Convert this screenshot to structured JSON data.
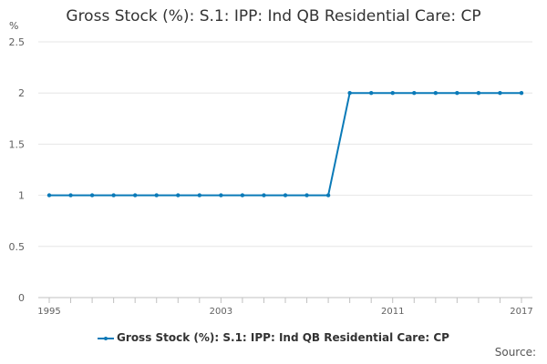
{
  "chart_data": {
    "type": "line",
    "title": "Gross Stock (%): S.1: IPP: Ind QB Residential Care: CP",
    "ylabel": "%",
    "xlabel": "",
    "ylim": [
      0,
      2.5
    ],
    "y_ticks": [
      "0",
      "0.5",
      "1",
      "1.5",
      "2",
      "2.5"
    ],
    "x_tick_labels": [
      "1995",
      "2003",
      "2011",
      "2017"
    ],
    "grid": "horizontal",
    "legend_placement": "bottom",
    "color": "#0a7ab8",
    "series": [
      {
        "name": "Gross Stock (%): S.1: IPP: Ind QB Residential Care: CP",
        "x": [
          1995,
          1996,
          1997,
          1998,
          1999,
          2000,
          2001,
          2002,
          2003,
          2004,
          2005,
          2006,
          2007,
          2008,
          2009,
          2010,
          2011,
          2012,
          2013,
          2014,
          2015,
          2016,
          2017
        ],
        "values": [
          1,
          1,
          1,
          1,
          1,
          1,
          1,
          1,
          1,
          1,
          1,
          1,
          1,
          1,
          2,
          2,
          2,
          2,
          2,
          2,
          2,
          2,
          2
        ]
      }
    ]
  },
  "footer": {
    "source_label": "Source:"
  }
}
